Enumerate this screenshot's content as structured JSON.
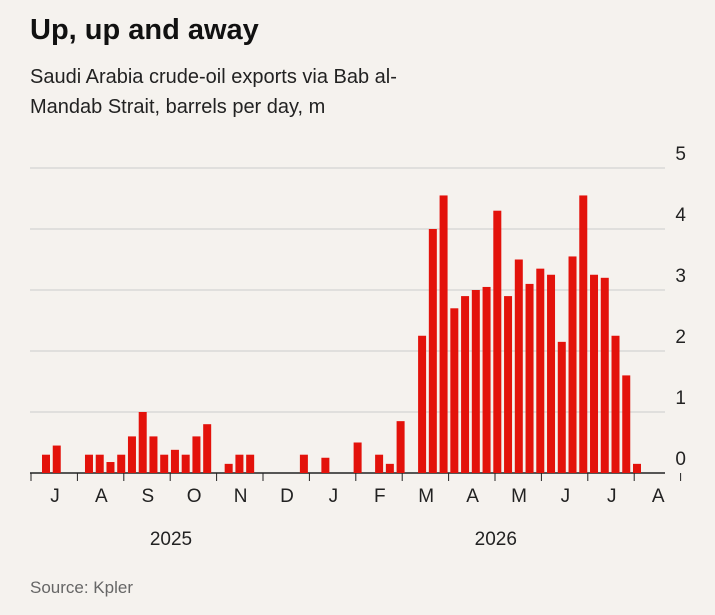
{
  "chart_data": {
    "type": "bar",
    "title": "Up, up and away",
    "subtitle": "Saudi Arabia crude-oil exports via Bab al-Mandab Strait, barrels per day, m",
    "source": "Source: Kpler",
    "color": "#e3120b",
    "values": [
      0.3,
      0.45,
      0,
      0,
      0.3,
      0.3,
      0.18,
      0.3,
      0.6,
      1.0,
      0.6,
      0.3,
      0.38,
      0.3,
      0.6,
      0.8,
      0,
      0.15,
      0.3,
      0.3,
      0,
      0,
      0,
      0,
      0.3,
      0,
      0.25,
      0,
      0,
      0.5,
      0,
      0.3,
      0.15,
      0.85,
      0,
      2.25,
      4.0,
      4.55,
      2.7,
      2.9,
      3.0,
      3.05,
      4.3,
      2.9,
      3.5,
      3.1,
      3.35,
      3.25,
      2.15,
      3.55,
      4.55,
      3.25,
      3.2,
      2.25,
      1.6,
      0.15
    ],
    "month_labels": [
      "J",
      "A",
      "S",
      "O",
      "N",
      "D",
      "J",
      "F",
      "M",
      "A",
      "M",
      "J",
      "J",
      "A"
    ],
    "year_labels": [
      "2025",
      "2026"
    ],
    "ylim": [
      0,
      5
    ],
    "yticks": [
      0,
      1,
      2,
      3,
      4,
      5
    ],
    "grid": true
  }
}
